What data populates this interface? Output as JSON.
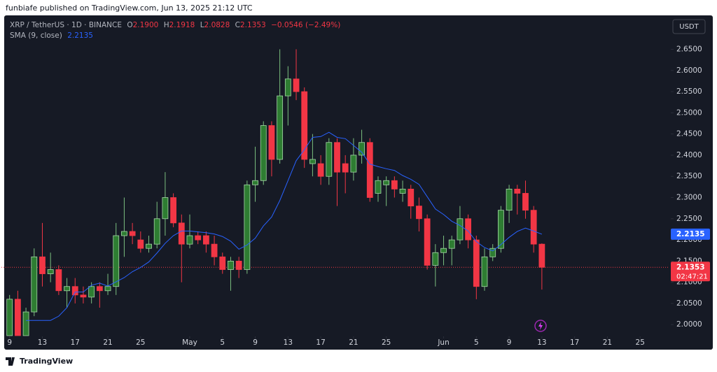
{
  "header": {
    "text": "funbiafe published on TradingView.com, Jun 13, 2025 21:12 UTC"
  },
  "footer": {
    "brand": "TradingView"
  },
  "chart_data": {
    "type": "candlestick",
    "legend": {
      "symbol": "XRP / TetherUS · 1D · BINANCE",
      "open_label": "O",
      "open": "2.1900",
      "high_label": "H",
      "high": "2.1918",
      "low_label": "L",
      "low": "2.0828",
      "close_label": "C",
      "close": "2.1353",
      "change": "−0.0546 (−2.49%)"
    },
    "currency": "USDT",
    "up_color": "#2e7d32",
    "down_color": "#f23645",
    "x": [
      "2025-04-09",
      "2025-04-10",
      "2025-04-11",
      "2025-04-12",
      "2025-04-13",
      "2025-04-14",
      "2025-04-15",
      "2025-04-16",
      "2025-04-17",
      "2025-04-18",
      "2025-04-19",
      "2025-04-20",
      "2025-04-21",
      "2025-04-22",
      "2025-04-23",
      "2025-04-24",
      "2025-04-25",
      "2025-04-26",
      "2025-04-27",
      "2025-04-28",
      "2025-04-29",
      "2025-04-30",
      "2025-05-01",
      "2025-05-02",
      "2025-05-03",
      "2025-05-04",
      "2025-05-05",
      "2025-05-06",
      "2025-05-07",
      "2025-05-08",
      "2025-05-09",
      "2025-05-10",
      "2025-05-11",
      "2025-05-12",
      "2025-05-13",
      "2025-05-14",
      "2025-05-15",
      "2025-05-16",
      "2025-05-17",
      "2025-05-18",
      "2025-05-19",
      "2025-05-20",
      "2025-05-21",
      "2025-05-22",
      "2025-05-23",
      "2025-05-24",
      "2025-05-25",
      "2025-05-26",
      "2025-05-27",
      "2025-05-28",
      "2025-05-29",
      "2025-05-30",
      "2025-05-31",
      "2025-06-01",
      "2025-06-02",
      "2025-06-03",
      "2025-06-04",
      "2025-06-05",
      "2025-06-06",
      "2025-06-07",
      "2025-06-08",
      "2025-06-09",
      "2025-06-10",
      "2025-06-11",
      "2025-06-12",
      "2025-06-13"
    ],
    "open": [
      1.96,
      2.06,
      1.95,
      2.03,
      2.16,
      2.12,
      2.13,
      2.08,
      2.09,
      2.07,
      2.065,
      2.09,
      2.08,
      2.09,
      2.21,
      2.22,
      2.2,
      2.18,
      2.19,
      2.25,
      2.3,
      2.24,
      2.19,
      2.21,
      2.21,
      2.19,
      2.16,
      2.13,
      2.15,
      2.13,
      2.33,
      2.34,
      2.47,
      2.39,
      2.54,
      2.58,
      2.55,
      2.38,
      2.38,
      2.35,
      2.43,
      2.38,
      2.36,
      2.4,
      2.43,
      2.31,
      2.33,
      2.34,
      2.31,
      2.32,
      2.28,
      2.25,
      2.14,
      2.17,
      2.18,
      2.2,
      2.25,
      2.2,
      2.09,
      2.16,
      2.18,
      2.27,
      2.32,
      2.31,
      2.27,
      2.19
    ],
    "high": [
      2.07,
      2.08,
      2.04,
      2.18,
      2.24,
      2.17,
      2.14,
      2.11,
      2.11,
      2.09,
      2.1,
      2.1,
      2.12,
      2.24,
      2.3,
      2.24,
      2.22,
      2.21,
      2.29,
      2.36,
      2.31,
      2.26,
      2.26,
      2.22,
      2.22,
      2.21,
      2.17,
      2.16,
      2.16,
      2.34,
      2.42,
      2.48,
      2.48,
      2.65,
      2.61,
      2.65,
      2.56,
      2.45,
      2.4,
      2.44,
      2.44,
      2.4,
      2.44,
      2.46,
      2.44,
      2.35,
      2.35,
      2.35,
      2.34,
      2.33,
      2.3,
      2.26,
      2.19,
      2.21,
      2.21,
      2.28,
      2.26,
      2.21,
      2.18,
      2.19,
      2.28,
      2.33,
      2.33,
      2.34,
      2.28,
      2.1918
    ],
    "low": [
      1.92,
      1.92,
      1.94,
      2.02,
      2.09,
      2.1,
      2.07,
      2.04,
      2.05,
      2.05,
      2.05,
      2.04,
      2.07,
      2.07,
      2.16,
      2.19,
      2.17,
      2.17,
      2.18,
      2.21,
      2.23,
      2.1,
      2.18,
      2.19,
      2.17,
      2.14,
      2.12,
      2.08,
      2.11,
      2.12,
      2.29,
      2.33,
      2.35,
      2.38,
      2.47,
      2.53,
      2.37,
      2.35,
      2.33,
      2.33,
      2.28,
      2.31,
      2.34,
      2.38,
      2.29,
      2.29,
      2.28,
      2.3,
      2.29,
      2.25,
      2.22,
      2.13,
      2.09,
      2.14,
      2.14,
      2.19,
      2.18,
      2.06,
      2.08,
      2.15,
      2.17,
      2.24,
      2.26,
      2.25,
      2.17,
      2.0828
    ],
    "close": [
      2.06,
      1.95,
      2.03,
      2.16,
      2.12,
      2.13,
      2.08,
      2.09,
      2.07,
      2.065,
      2.09,
      2.08,
      2.09,
      2.21,
      2.22,
      2.21,
      2.18,
      2.19,
      2.25,
      2.3,
      2.24,
      2.19,
      2.21,
      2.2,
      2.19,
      2.16,
      2.13,
      2.15,
      2.13,
      2.33,
      2.34,
      2.47,
      2.39,
      2.54,
      2.58,
      2.55,
      2.39,
      2.39,
      2.35,
      2.43,
      2.36,
      2.36,
      2.4,
      2.43,
      2.3,
      2.34,
      2.34,
      2.32,
      2.32,
      2.28,
      2.25,
      2.14,
      2.17,
      2.18,
      2.2,
      2.25,
      2.2,
      2.09,
      2.16,
      2.18,
      2.27,
      2.32,
      2.31,
      2.27,
      2.19,
      2.1353
    ],
    "series": [
      {
        "name": "SMA (9, close)",
        "color": "#2962ff",
        "last_label": "2.2135",
        "values": [
          null,
          null,
          2.01,
          2.01,
          2.01,
          2.01,
          2.02,
          2.04,
          2.077,
          2.077,
          2.093,
          2.098,
          2.091,
          2.101,
          2.111,
          2.125,
          2.135,
          2.148,
          2.169,
          2.192,
          2.21,
          2.221,
          2.221,
          2.219,
          2.217,
          2.214,
          2.208,
          2.197,
          2.178,
          2.188,
          2.204,
          2.233,
          2.254,
          2.293,
          2.34,
          2.387,
          2.413,
          2.442,
          2.444,
          2.454,
          2.442,
          2.439,
          2.423,
          2.407,
          2.379,
          2.373,
          2.368,
          2.364,
          2.352,
          2.343,
          2.331,
          2.302,
          2.273,
          2.26,
          2.244,
          2.234,
          2.221,
          2.196,
          2.182,
          2.174,
          2.189,
          2.206,
          2.22,
          2.228,
          2.221,
          2.2135
        ]
      }
    ],
    "last_price_label": "2.1353",
    "countdown": "02:47:21",
    "xlim": [
      "2025-04-08",
      "2025-06-29"
    ],
    "ylim": [
      1.974,
      2.73
    ],
    "yticks": [
      {
        "value": 2.0,
        "label": "2.0000"
      },
      {
        "value": 2.05,
        "label": "2.0500"
      },
      {
        "value": 2.1,
        "label": "2.1000"
      },
      {
        "value": 2.15,
        "label": "2.1500"
      },
      {
        "value": 2.2,
        "label": "2.2000"
      },
      {
        "value": 2.25,
        "label": "2.2500"
      },
      {
        "value": 2.3,
        "label": "2.3000"
      },
      {
        "value": 2.35,
        "label": "2.3500"
      },
      {
        "value": 2.4,
        "label": "2.4000"
      },
      {
        "value": 2.45,
        "label": "2.4500"
      },
      {
        "value": 2.5,
        "label": "2.5000"
      },
      {
        "value": 2.55,
        "label": "2.5500"
      },
      {
        "value": 2.6,
        "label": "2.6000"
      },
      {
        "value": 2.65,
        "label": "2.6500"
      }
    ],
    "xticks": [
      {
        "value": "2025-04-09",
        "label": "9"
      },
      {
        "value": "2025-04-13",
        "label": "13"
      },
      {
        "value": "2025-04-17",
        "label": "17"
      },
      {
        "value": "2025-04-21",
        "label": "21"
      },
      {
        "value": "2025-04-25",
        "label": "25"
      },
      {
        "value": "2025-05-01",
        "label": "May"
      },
      {
        "value": "2025-05-05",
        "label": "5"
      },
      {
        "value": "2025-05-09",
        "label": "9"
      },
      {
        "value": "2025-05-13",
        "label": "13"
      },
      {
        "value": "2025-05-17",
        "label": "17"
      },
      {
        "value": "2025-05-21",
        "label": "21"
      },
      {
        "value": "2025-05-25",
        "label": "25"
      },
      {
        "value": "2025-06-01",
        "label": "Jun"
      },
      {
        "value": "2025-06-05",
        "label": "5"
      },
      {
        "value": "2025-06-09",
        "label": "9"
      },
      {
        "value": "2025-06-13",
        "label": "13"
      },
      {
        "value": "2025-06-17",
        "label": "17"
      },
      {
        "value": "2025-06-21",
        "label": "21"
      },
      {
        "value": "2025-06-25",
        "label": "25"
      }
    ],
    "grid": false
  }
}
